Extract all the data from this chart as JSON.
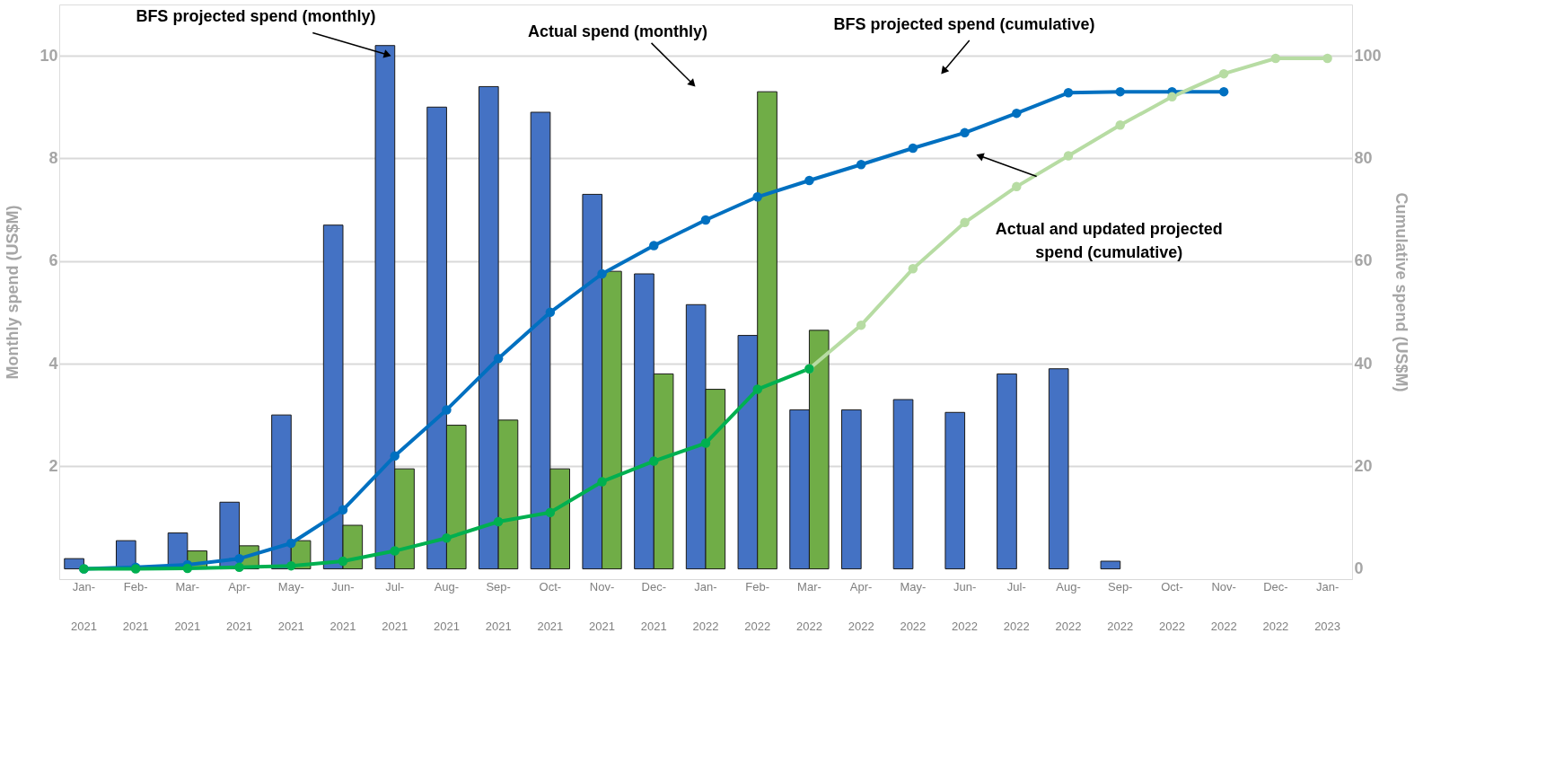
{
  "chart_data": {
    "type": "bar",
    "categories": [
      "Jan-2021",
      "Feb-2021",
      "Mar-2021",
      "Apr-2021",
      "May-2021",
      "Jun-2021",
      "Jul-2021",
      "Aug-2021",
      "Sep-2021",
      "Oct-2021",
      "Nov-2021",
      "Dec-2021",
      "Jan-2022",
      "Feb-2022",
      "Mar-2022",
      "Apr-2022",
      "May-2022",
      "Jun-2022",
      "Jul-2022",
      "Aug-2022",
      "Sep-2022",
      "Oct-2022",
      "Nov-2022",
      "Dec-2022",
      "Jan-2023"
    ],
    "ylabel": "Monthly  spend (US$M)",
    "y2label": "Cumulative spend (US$M)",
    "ylim": [
      -0.2,
      11
    ],
    "yticks": [
      2,
      4,
      6,
      8,
      10
    ],
    "y2lim": [
      -2,
      110
    ],
    "y2ticks": [
      0,
      20,
      40,
      60,
      80,
      100
    ],
    "grid": "y",
    "legend": false,
    "marker": "circle",
    "series": [
      {
        "color": "#4472c4",
        "values": [
          0.2,
          0.55,
          0.7,
          1.3,
          3.0,
          6.7,
          10.2,
          9.0,
          9.4,
          8.9,
          7.3,
          5.75,
          5.15,
          4.55,
          3.1,
          3.1,
          3.3,
          3.05,
          3.8,
          3.9,
          0.15,
          null,
          null,
          null,
          null
        ]
      },
      {
        "color": "#70ad47",
        "values": [
          null,
          null,
          0.35,
          0.45,
          0.55,
          0.85,
          1.95,
          2.8,
          2.9,
          1.95,
          5.8,
          3.8,
          3.5,
          9.3,
          4.65,
          null,
          null,
          null,
          null,
          null,
          null,
          null,
          null,
          null,
          null
        ]
      },
      {
        "type": "line",
        "axis": "y2",
        "color": "#0070c0",
        "values": [
          0,
          0.3,
          0.8,
          2,
          5,
          11.5,
          22,
          31,
          41,
          50,
          57.5,
          63,
          68,
          72.5,
          75.7,
          78.8,
          82,
          85,
          88.8,
          92.8,
          93,
          93,
          93,
          null,
          null
        ]
      },
      {
        "type": "line",
        "axis": "y2",
        "color": "#b7dca3",
        "values": [
          null,
          null,
          null,
          null,
          null,
          null,
          null,
          null,
          null,
          null,
          null,
          null,
          null,
          null,
          39,
          47.5,
          58.5,
          67.5,
          74.5,
          80.5,
          86.5,
          92,
          96.5,
          99.5,
          99.5
        ]
      },
      {
        "type": "line",
        "axis": "y2",
        "color": "#00b050",
        "values": [
          0,
          0,
          0.1,
          0.3,
          0.6,
          1.5,
          3.5,
          6,
          9.2,
          11,
          17,
          21,
          24.5,
          35,
          39,
          null,
          null,
          null,
          null,
          null,
          null,
          null,
          null,
          null,
          null
        ]
      }
    ],
    "annotations": [
      "BFS projected spend (monthly)",
      "Actual spend (monthly)",
      "BFS projected spend (cumulative)",
      "Actual and updated projected spend (cumulative)"
    ]
  }
}
